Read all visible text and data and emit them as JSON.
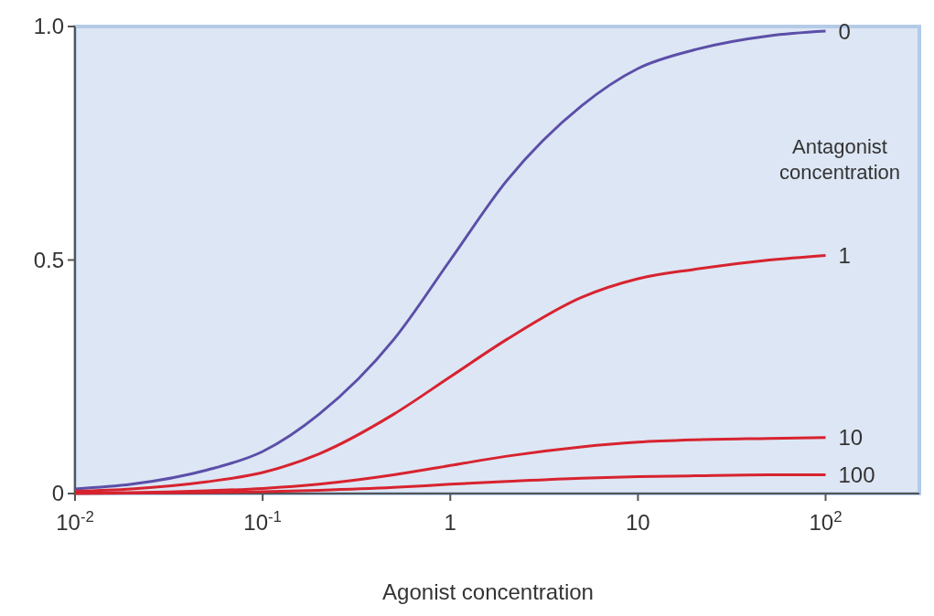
{
  "chart_data": {
    "type": "line",
    "xlabel": "Agonist concentration",
    "legend_title": "Antagonist concentration",
    "log": "x",
    "x": [
      0.01,
      0.02,
      0.05,
      0.1,
      0.2,
      0.5,
      1,
      2,
      5,
      10,
      20,
      50,
      100
    ],
    "xlim": [
      0.01,
      316
    ],
    "xticks": [
      {
        "value": 0.01,
        "label": "10$^{-2}$"
      },
      {
        "value": 0.1,
        "label": "10$^{-1}$"
      },
      1,
      10,
      {
        "value": 100,
        "label": "10$^{2}$"
      }
    ],
    "ylim": [
      0,
      1
    ],
    "yticks": [
      0,
      0.5,
      {
        "value": 1,
        "label": "1.0"
      }
    ],
    "grid": false,
    "marker": "none",
    "line_style": "solid",
    "series": [
      {
        "name": "0",
        "color": "#5b4fa8",
        "values": [
          0.01,
          0.02,
          0.05,
          0.09,
          0.17,
          0.33,
          0.5,
          0.67,
          0.83,
          0.91,
          0.95,
          0.98,
          0.99
        ]
      },
      {
        "name": "1",
        "color": "#d7232f",
        "values": [
          0.005,
          0.01,
          0.025,
          0.045,
          0.085,
          0.17,
          0.25,
          0.33,
          0.42,
          0.46,
          0.48,
          0.5,
          0.51
        ]
      },
      {
        "name": "10",
        "color": "#d7232f",
        "values": [
          0.001,
          0.002,
          0.006,
          0.011,
          0.02,
          0.04,
          0.06,
          0.08,
          0.1,
          0.11,
          0.115,
          0.118,
          0.12
        ]
      },
      {
        "name": "100",
        "color": "#d7232f",
        "values": [
          0,
          0.001,
          0.002,
          0.004,
          0.007,
          0.013,
          0.02,
          0.026,
          0.033,
          0.036,
          0.038,
          0.04,
          0.04
        ]
      }
    ]
  }
}
